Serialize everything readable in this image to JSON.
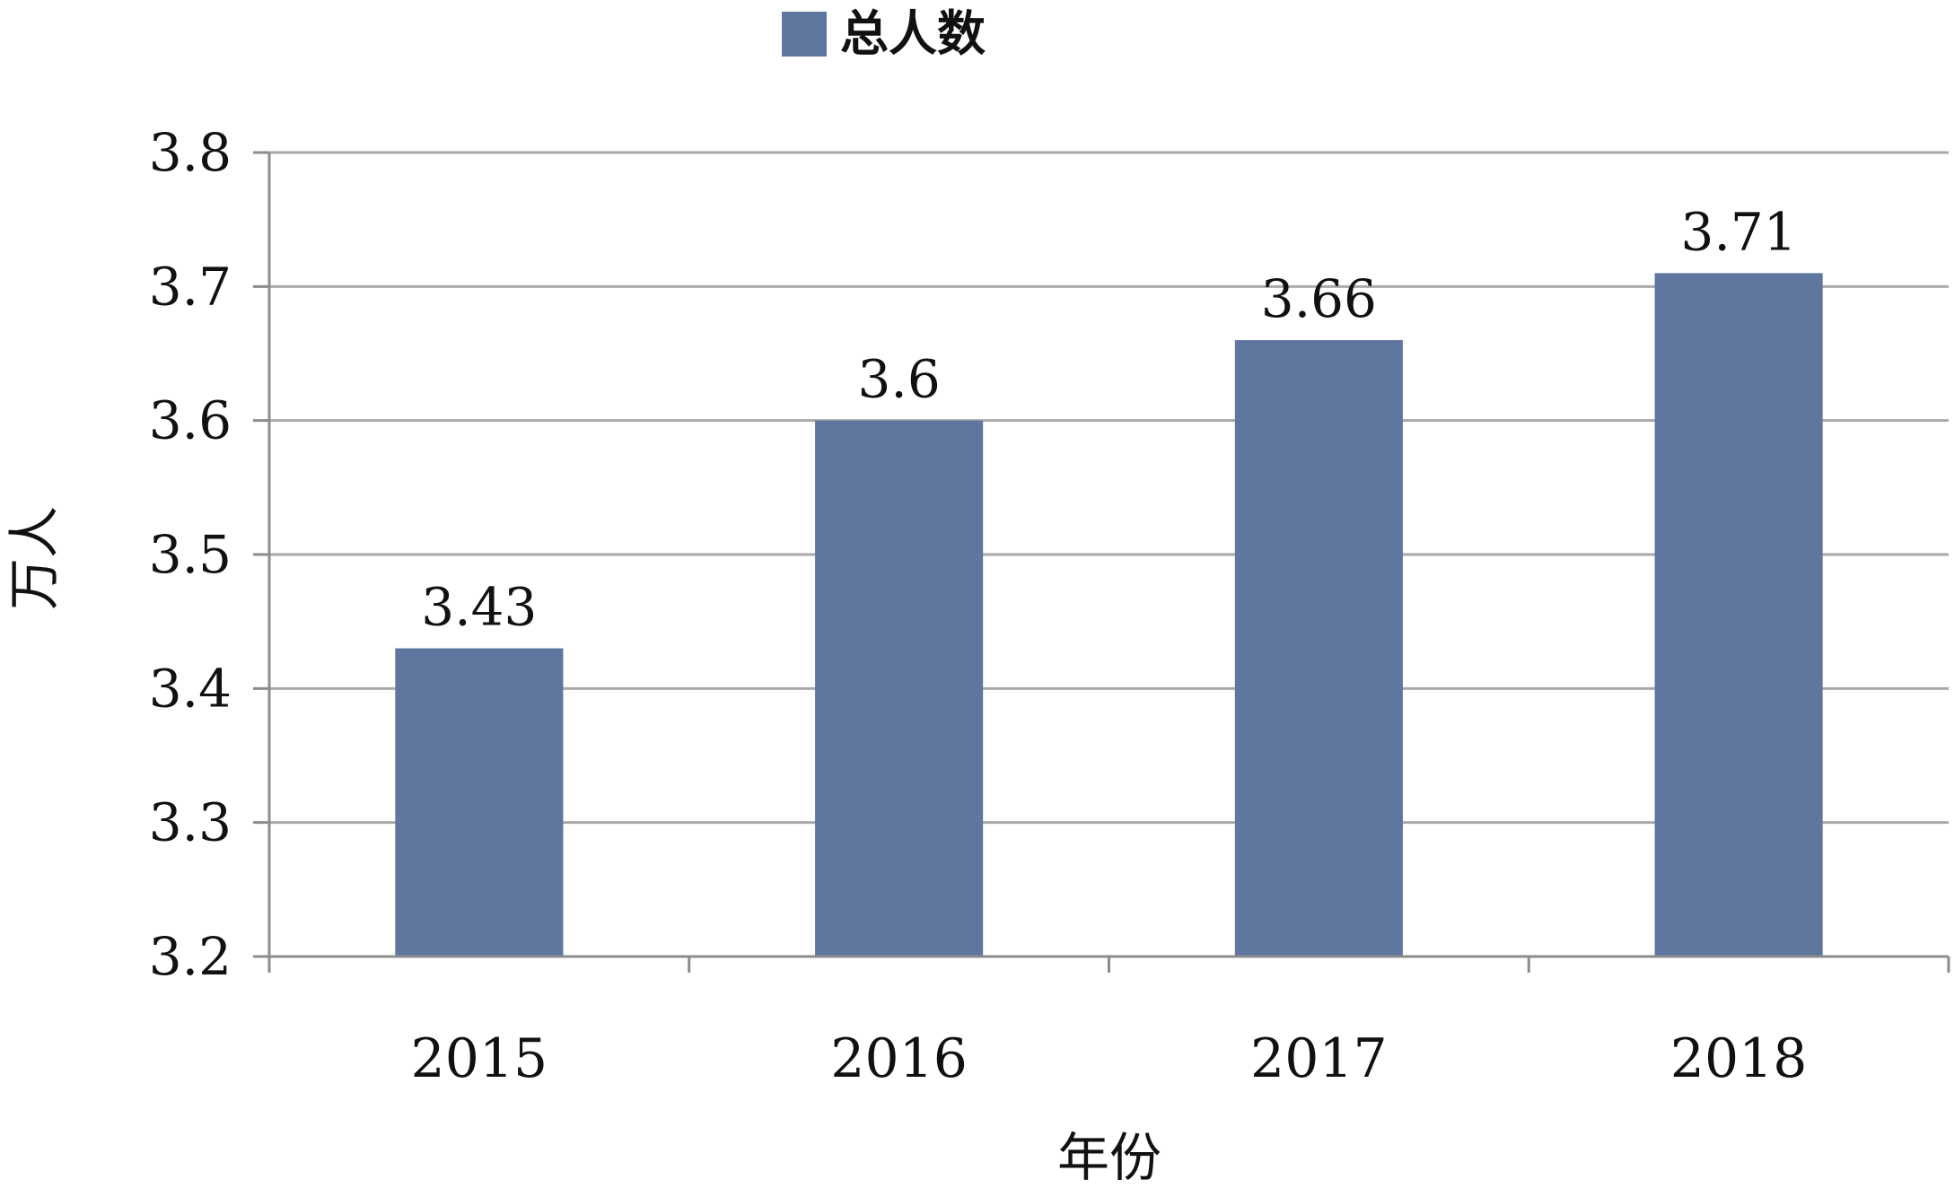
{
  "chart_data": {
    "type": "bar",
    "title": "",
    "legend": {
      "position": "top",
      "entries": [
        "总人数"
      ]
    },
    "categories": [
      "2015",
      "2016",
      "2017",
      "2018"
    ],
    "series": [
      {
        "name": "总人数",
        "values": [
          3.43,
          3.6,
          3.66,
          3.71
        ],
        "color": "#5f769f"
      }
    ],
    "data_labels": [
      "3.43",
      "3.6",
      "3.66",
      "3.71"
    ],
    "xlabel": "年份",
    "ylabel": "万人",
    "ylim": [
      3.2,
      3.8
    ],
    "yticks": [
      3.2,
      3.3,
      3.4,
      3.5,
      3.6,
      3.7,
      3.8
    ],
    "ytick_labels": [
      "3.2",
      "3.3",
      "3.4",
      "3.5",
      "3.6",
      "3.7",
      "3.8"
    ],
    "grid": true,
    "colors": {
      "bar": "#5f769f",
      "grid": "#a9a9a9",
      "axis": "#8c8c8c",
      "text": "#111111"
    }
  }
}
